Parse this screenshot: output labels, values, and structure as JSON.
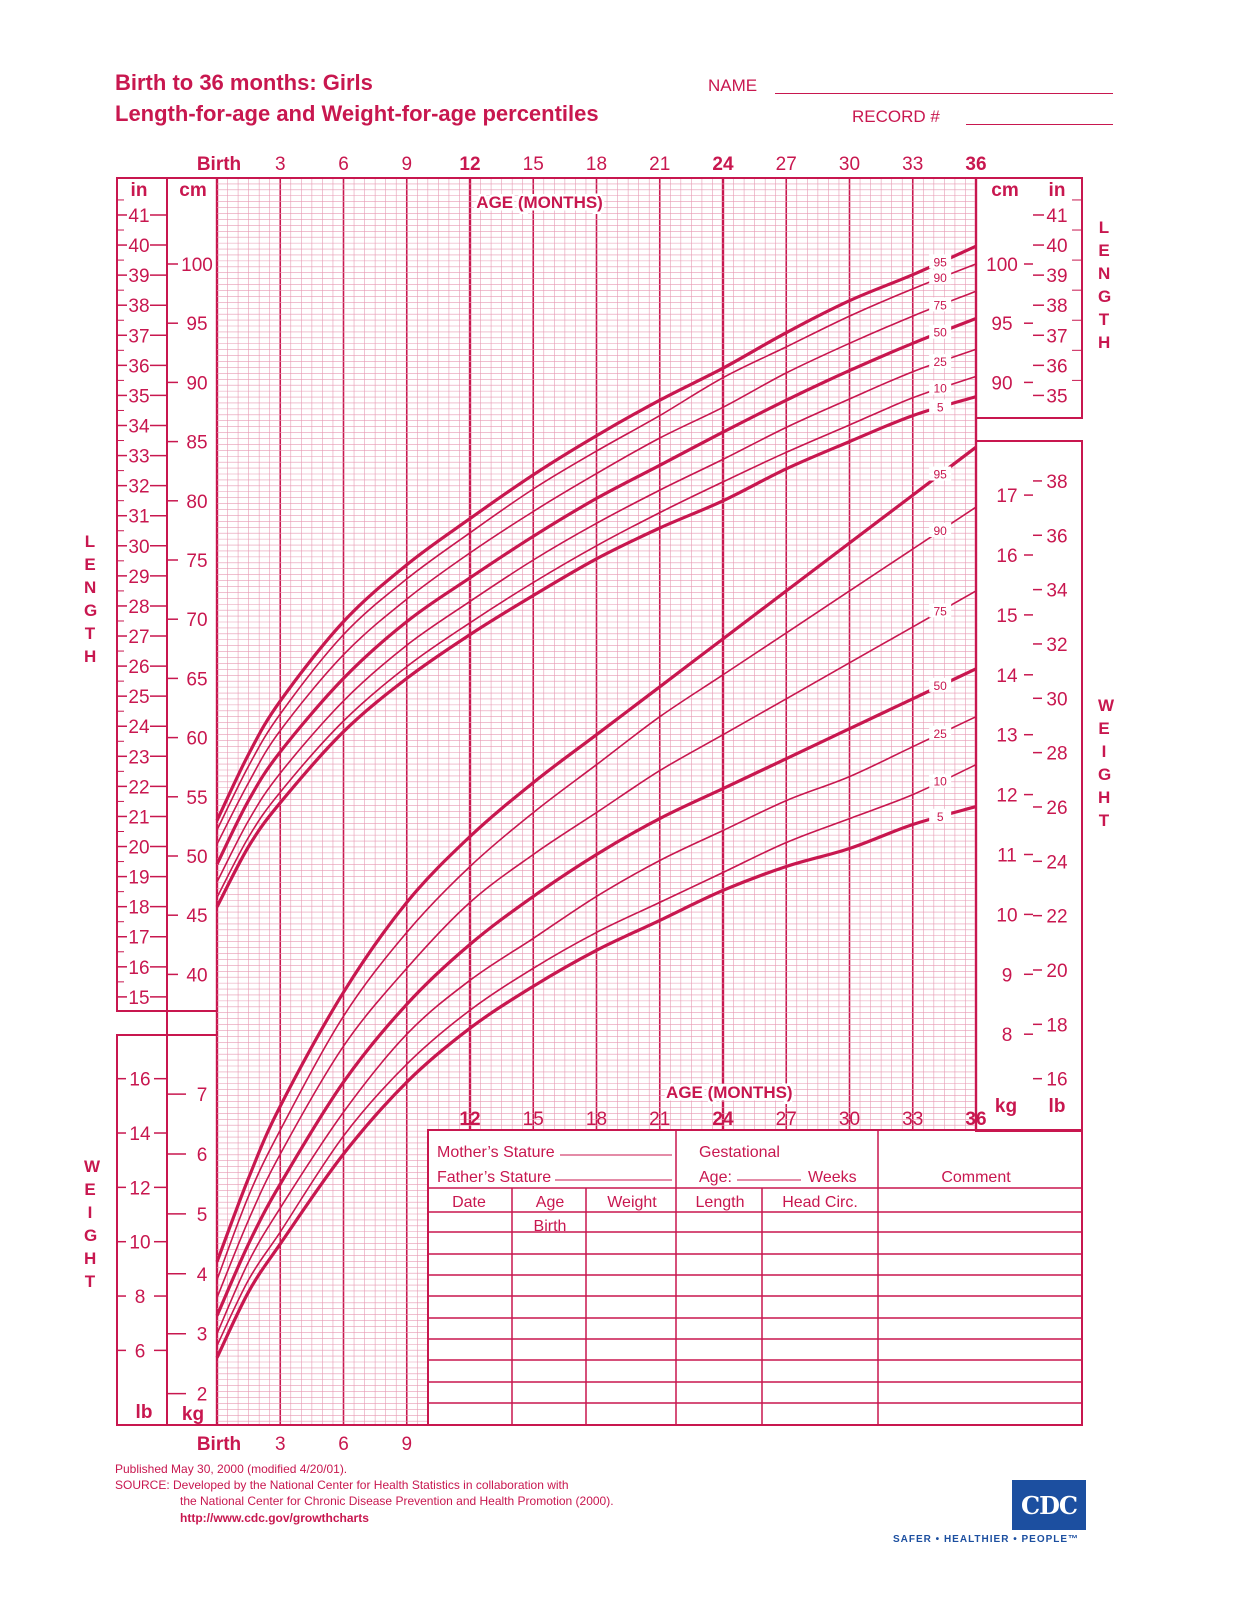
{
  "header": {
    "title_line1": "Birth to 36 months: Girls",
    "title_line2": "Length-for-age and Weight-for-age percentiles",
    "name_label": "NAME",
    "record_label": "RECORD #"
  },
  "side_labels": {
    "length_left": "LENGTH",
    "weight_left": "WEIGHT",
    "length_right": "LENGTH",
    "weight_right": "WEIGHT"
  },
  "footer": {
    "published": "Published May 30, 2000 (modified 4/20/01).",
    "source_line1": "SOURCE: Developed by the National Center for Health Statistics in collaboration with",
    "source_line2": "the National Center for Chronic Disease Prevention and Health Promotion (2000).",
    "url": "http://www.cdc.gov/growthcharts",
    "logo_text": "CDC",
    "tagline": "SAFER • HEALTHIER • PEOPLE™"
  },
  "colors": {
    "primary": "#c8174f",
    "grid_light": "#e79ab3",
    "logo_blue": "#1c4fa0"
  },
  "chart_data": [
    {
      "type": "line",
      "title": "Length-for-age",
      "xlabel": "AGE (MONTHS)",
      "ylabel": "LENGTH",
      "x_ticks": [
        "Birth",
        "3",
        "6",
        "9",
        "12",
        "15",
        "18",
        "21",
        "24",
        "27",
        "30",
        "33",
        "36"
      ],
      "y_unit_left": "cm",
      "y_unit_right": "in",
      "ylim_cm": [
        37,
        105
      ],
      "cm_ticks": [
        40,
        45,
        50,
        55,
        60,
        65,
        70,
        75,
        80,
        85,
        90,
        95,
        100
      ],
      "cm_ticks_right": [
        90,
        95,
        100
      ],
      "in_ticks": [
        15,
        16,
        17,
        18,
        19,
        20,
        21,
        22,
        23,
        24,
        25,
        26,
        27,
        28,
        29,
        30,
        31,
        32,
        33,
        34,
        35,
        36,
        37,
        38,
        39,
        40,
        41
      ],
      "in_ticks_right": [
        35,
        36,
        37,
        38,
        39,
        40,
        41
      ],
      "x": [
        0,
        1.5,
        3,
        6,
        9,
        12,
        15,
        18,
        21,
        24,
        27,
        30,
        33,
        36
      ],
      "series": [
        {
          "name": "95",
          "values": [
            53.0,
            58.6,
            63.1,
            69.8,
            74.6,
            78.5,
            82.2,
            85.5,
            88.5,
            91.2,
            94.2,
            96.9,
            99.1,
            101.5
          ]
        },
        {
          "name": "90",
          "values": [
            52.2,
            57.6,
            62.0,
            68.7,
            73.4,
            77.3,
            81.0,
            84.2,
            87.2,
            90.4,
            93.0,
            95.6,
            97.9,
            100.0
          ]
        },
        {
          "name": "75",
          "values": [
            51.0,
            56.2,
            60.6,
            67.0,
            71.7,
            75.6,
            79.1,
            82.3,
            85.3,
            87.9,
            90.8,
            93.3,
            95.6,
            97.7
          ]
        },
        {
          "name": "50",
          "values": [
            49.3,
            54.7,
            58.8,
            65.0,
            69.8,
            73.5,
            77.0,
            80.2,
            83.0,
            85.8,
            88.5,
            91.0,
            93.3,
            95.4
          ]
        },
        {
          "name": "25",
          "values": [
            47.8,
            53.0,
            57.0,
            63.1,
            67.8,
            71.5,
            75.0,
            78.1,
            80.9,
            83.5,
            86.2,
            88.6,
            90.9,
            92.8
          ]
        },
        {
          "name": "10",
          "values": [
            46.5,
            51.6,
            55.4,
            61.4,
            66.0,
            69.7,
            73.1,
            76.2,
            79.0,
            81.6,
            84.1,
            86.4,
            88.7,
            90.5
          ]
        },
        {
          "name": "5",
          "values": [
            45.7,
            50.8,
            54.5,
            60.5,
            65.0,
            68.7,
            72.0,
            75.1,
            77.7,
            80.0,
            82.7,
            85.0,
            87.2,
            88.8
          ]
        }
      ]
    },
    {
      "type": "line",
      "title": "Weight-for-age",
      "xlabel": "AGE (MONTHS)",
      "ylabel": "WEIGHT",
      "x_ticks": [
        "Birth",
        "3",
        "6",
        "9",
        "12",
        "15",
        "18",
        "21",
        "24",
        "27",
        "30",
        "33",
        "36"
      ],
      "y_unit_left": "kg",
      "y_unit_right": "kg",
      "ylim_kg": [
        1.4,
        17.6
      ],
      "kg_ticks": [
        2,
        3,
        4,
        5,
        6,
        7
      ],
      "kg_ticks_right": [
        8,
        9,
        10,
        11,
        12,
        13,
        14,
        15,
        16,
        17
      ],
      "lb_ticks": [
        6,
        8,
        10,
        12,
        14,
        16
      ],
      "lb_ticks_right": [
        16,
        18,
        20,
        22,
        24,
        26,
        28,
        30,
        32,
        34,
        36,
        38
      ],
      "x": [
        0,
        1.5,
        3,
        6,
        9,
        12,
        15,
        18,
        21,
        24,
        27,
        30,
        33,
        36
      ],
      "series": [
        {
          "name": "95",
          "values": [
            4.2,
            5.6,
            6.8,
            8.7,
            10.2,
            11.3,
            12.2,
            13.0,
            13.8,
            14.6,
            15.4,
            16.2,
            17.0,
            17.8
          ]
        },
        {
          "name": "90",
          "values": [
            3.9,
            5.3,
            6.4,
            8.3,
            9.7,
            10.8,
            11.7,
            12.5,
            13.3,
            14.0,
            14.7,
            15.4,
            16.1,
            16.8
          ]
        },
        {
          "name": "75",
          "values": [
            3.6,
            4.9,
            6.0,
            7.8,
            9.1,
            10.2,
            11.0,
            11.7,
            12.4,
            13.0,
            13.6,
            14.2,
            14.8,
            15.4
          ]
        },
        {
          "name": "50",
          "values": [
            3.3,
            4.5,
            5.5,
            7.2,
            8.5,
            9.5,
            10.3,
            11.0,
            11.6,
            12.1,
            12.6,
            13.1,
            13.6,
            14.1
          ]
        },
        {
          "name": "25",
          "values": [
            3.0,
            4.2,
            5.1,
            6.7,
            8.0,
            8.9,
            9.6,
            10.3,
            10.9,
            11.4,
            11.9,
            12.3,
            12.8,
            13.3
          ]
        },
        {
          "name": "10",
          "values": [
            2.8,
            3.9,
            4.7,
            6.3,
            7.5,
            8.4,
            9.1,
            9.7,
            10.2,
            10.7,
            11.2,
            11.6,
            12.0,
            12.5
          ]
        },
        {
          "name": "5",
          "values": [
            2.6,
            3.7,
            4.5,
            6.0,
            7.2,
            8.1,
            8.8,
            9.4,
            9.9,
            10.4,
            10.8,
            11.1,
            11.5,
            11.8
          ]
        }
      ]
    }
  ],
  "chart_text": {
    "birth": "Birth",
    "age_months": "AGE (MONTHS)",
    "unit_in": "in",
    "unit_cm": "cm",
    "unit_kg": "kg",
    "unit_lb": "lb"
  },
  "record_table": {
    "mothers_stature": "Mother’s Stature",
    "fathers_stature": "Father’s Stature",
    "gestational": "Gestational",
    "age_label": "Age:",
    "weeks": "Weeks",
    "comment": "Comment",
    "columns": [
      "Date",
      "Age",
      "Weight",
      "Length",
      "Head  Circ."
    ],
    "first_row_age": "Birth"
  }
}
